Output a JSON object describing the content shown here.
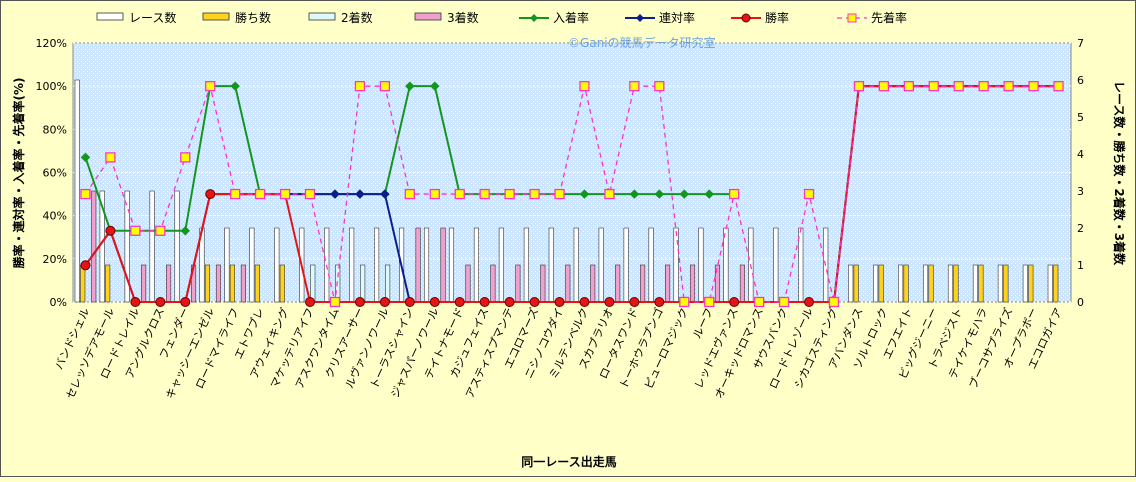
{
  "chart_data": {
    "type": "bar+line",
    "xlabel": "同一レース出走馬",
    "ylabel_left": "勝率・連対率・入着率・先着率(%)",
    "ylabel_right": "レース数・勝ち数・2着数・3着数",
    "watermark": "©Ganiの競馬データ研究室",
    "left_axis": {
      "min": 0,
      "max": 120,
      "step": 20,
      "unit": "%"
    },
    "right_axis": {
      "min": 0,
      "max": 7,
      "step": 1
    },
    "left_ticks": [
      "0%",
      "20%",
      "40%",
      "60%",
      "80%",
      "100%",
      "120%"
    ],
    "right_ticks": [
      "0",
      "1",
      "2",
      "3",
      "4",
      "5",
      "6",
      "7"
    ],
    "categories": [
      "バンドシェル",
      "セレッソデアモール",
      "ロードトレイル",
      "アングルクロス",
      "フェンダー",
      "キャッシーエンゼル",
      "ロードマイライフ",
      "エトワブレ",
      "アウェイキング",
      "マケッテリアイフ",
      "アスクワンタイム",
      "クリスアーサー",
      "ルヴァンノワール",
      "トーラスシャイン",
      "ジャスパーノワール",
      "テイトナモード",
      "カジュフェイス",
      "アスティスプマンテ",
      "エコロマーズ",
      "ニシノコウダイ",
      "ミルテンベルク",
      "スカブラリオ",
      "ロータスワンド",
      "トーホウラプンゴ",
      "ピューロマジック",
      "ルーフ",
      "レッドエヴァンス",
      "オーキッドロマンス",
      "サウスバンク",
      "ロードトレゾール",
      "シカゴスティング",
      "アバンダンス",
      "ソルトロック",
      "エフエイト",
      "ビッグジーニー",
      "トラベジスト",
      "テイケイモハラ",
      "ブーコサプライズ",
      "オープラボー",
      "エコロガイア"
    ],
    "bar_series": [
      {
        "name": "レース数",
        "color": "#ffffff",
        "values": [
          6,
          3,
          3,
          3,
          3,
          2,
          2,
          2,
          2,
          2,
          2,
          2,
          2,
          2,
          2,
          2,
          2,
          2,
          2,
          2,
          2,
          2,
          2,
          2,
          2,
          2,
          2,
          2,
          2,
          2,
          2,
          1,
          1,
          1,
          1,
          1,
          1,
          1,
          1,
          1
        ]
      },
      {
        "name": "勝ち数",
        "color": "#ffd21e",
        "values": [
          1,
          1,
          0,
          0,
          0,
          1,
          1,
          1,
          1,
          0,
          0,
          0,
          0,
          0,
          0,
          0,
          0,
          0,
          0,
          0,
          0,
          0,
          0,
          0,
          0,
          0,
          0,
          0,
          0,
          0,
          0,
          1,
          1,
          1,
          1,
          1,
          1,
          1,
          1,
          1
        ]
      },
      {
        "name": "2着数",
        "color": "#dcfafa",
        "values": [
          0,
          0,
          0,
          0,
          0,
          0,
          0,
          0,
          0,
          1,
          1,
          1,
          1,
          0,
          0,
          0,
          0,
          0,
          0,
          0,
          0,
          0,
          0,
          0,
          0,
          0,
          0,
          0,
          0,
          0,
          0,
          0,
          0,
          0,
          0,
          0,
          0,
          0,
          0,
          0
        ]
      },
      {
        "name": "3着数",
        "color": "#f0a0cd",
        "values": [
          3,
          0,
          1,
          1,
          1,
          1,
          1,
          0,
          0,
          0,
          0,
          0,
          0,
          2,
          2,
          1,
          1,
          1,
          1,
          1,
          1,
          1,
          1,
          1,
          1,
          1,
          1,
          0,
          0,
          0,
          0,
          0,
          0,
          0,
          0,
          0,
          0,
          0,
          0,
          0
        ]
      }
    ],
    "line_series": [
      {
        "name": "入着率",
        "color": "#14961e",
        "dash": false,
        "marker": "diamond",
        "values": [
          67,
          33,
          33,
          33,
          33,
          100,
          100,
          50,
          50,
          50,
          50,
          50,
          50,
          100,
          100,
          50,
          50,
          50,
          50,
          50,
          50,
          50,
          50,
          50,
          50,
          50,
          50,
          null,
          null,
          null,
          null,
          100,
          100,
          100,
          100,
          100,
          100,
          100,
          100,
          100
        ]
      },
      {
        "name": "連対率",
        "color": "#0a1e8c",
        "dash": false,
        "marker": "diamond",
        "values": [
          17,
          33,
          0,
          0,
          0,
          50,
          50,
          50,
          50,
          50,
          50,
          50,
          50,
          0,
          0,
          0,
          0,
          0,
          0,
          0,
          0,
          0,
          0,
          0,
          0,
          0,
          0,
          0,
          0,
          0,
          0,
          100,
          100,
          100,
          100,
          100,
          100,
          100,
          100,
          100
        ]
      },
      {
        "name": "勝率",
        "color": "#e61414",
        "dash": false,
        "marker": "circle",
        "values": [
          17,
          33,
          0,
          0,
          0,
          50,
          50,
          50,
          50,
          0,
          0,
          0,
          0,
          0,
          0,
          0,
          0,
          0,
          0,
          0,
          0,
          0,
          0,
          0,
          0,
          0,
          0,
          0,
          0,
          0,
          0,
          100,
          100,
          100,
          100,
          100,
          100,
          100,
          100,
          100
        ]
      },
      {
        "name": "先着率",
        "color": "#ff32c8",
        "dash": true,
        "marker": "square",
        "values": [
          50,
          67,
          33,
          33,
          67,
          100,
          50,
          50,
          50,
          50,
          0,
          100,
          100,
          50,
          50,
          50,
          50,
          50,
          50,
          50,
          100,
          50,
          100,
          100,
          0,
          0,
          50,
          0,
          0,
          50,
          0,
          100,
          100,
          100,
          100,
          100,
          100,
          100,
          100,
          100
        ]
      }
    ],
    "grid": true,
    "legend_position": "top"
  }
}
